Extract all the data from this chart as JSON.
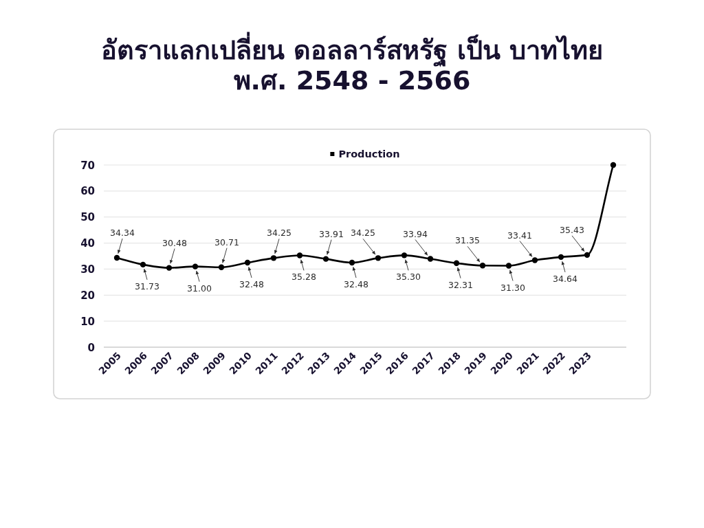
{
  "chart_data": {
    "type": "line",
    "title": "อัตราแลกเปลี่ยน ดอลลาร์สหรัฐ เป็น บาทไทย",
    "subtitle": "พ.ศ. 2548 - 2566",
    "categories": [
      "2005",
      "2006",
      "2007",
      "2008",
      "2009",
      "2010",
      "2011",
      "2012",
      "2013",
      "2014",
      "2015",
      "2016",
      "2017",
      "2018",
      "2019",
      "2020",
      "2021",
      "2022",
      "2023",
      null
    ],
    "series": [
      {
        "name": "Production",
        "color": "#000000",
        "values": [
          34.34,
          31.73,
          30.48,
          31.0,
          30.71,
          32.48,
          34.25,
          35.28,
          33.91,
          32.48,
          34.25,
          35.3,
          33.94,
          32.31,
          31.35,
          31.3,
          33.41,
          34.64,
          35.43,
          70
        ],
        "value_labels": [
          "34.34",
          "31.73",
          "30.48",
          "31.00",
          "30.71",
          "32.48",
          "34.25",
          "35.28",
          "33.91",
          "32.48",
          "34.25",
          "35.30",
          "33.94",
          "32.31",
          "31.35",
          "31.30",
          "33.41",
          "34.64",
          "35.43",
          null
        ]
      }
    ],
    "ylim": [
      0,
      70
    ],
    "yticks": [
      0,
      10,
      20,
      30,
      40,
      50,
      60,
      70
    ],
    "grid": "y",
    "legend": "top",
    "marker": "circle",
    "line_style": "solid"
  }
}
